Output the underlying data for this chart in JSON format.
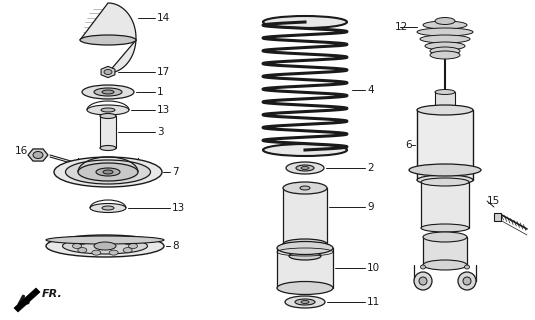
{
  "bg_color": "#ffffff",
  "line_color": "#1a1a1a",
  "fig_w": 5.35,
  "fig_h": 3.2,
  "dpi": 100
}
